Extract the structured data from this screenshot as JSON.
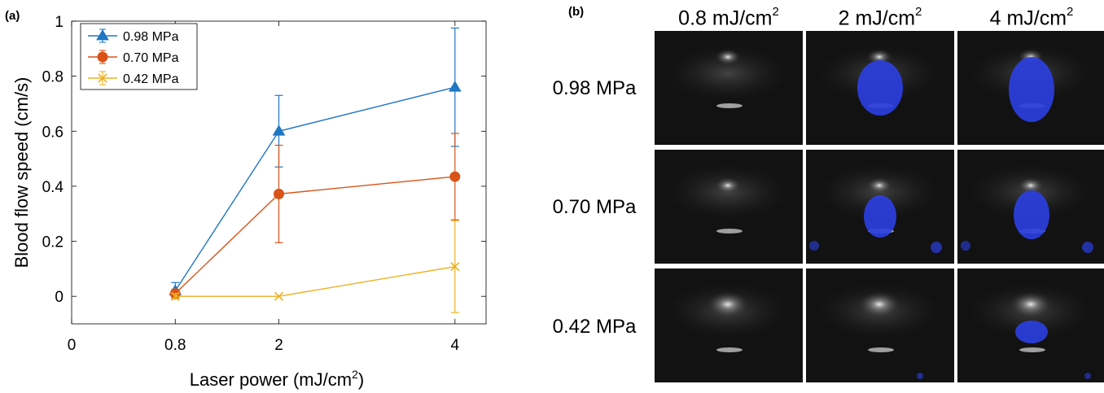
{
  "panel_a_label": "(a)",
  "panel_b_label": "(b)",
  "chart_data": {
    "type": "line",
    "xlabel": "Laser power (mJ/cm",
    "xlabel_sup": "2",
    "xlabel_suffix": ")",
    "ylabel": "Blood flow speed (cm/s)",
    "x": [
      0.8,
      2,
      4
    ],
    "x_positions": [
      1,
      2,
      3.7
    ],
    "x_ticks": [
      "0",
      "0.8",
      "2",
      "4"
    ],
    "y_ticks": [
      "0",
      "0.2",
      "0.4",
      "0.6",
      "0.8",
      "1"
    ],
    "y_tick_values": [
      0,
      0.2,
      0.4,
      0.6,
      0.8,
      1
    ],
    "ylim": [
      -0.1,
      1
    ],
    "grid": false,
    "legend_position": "top-left",
    "series": [
      {
        "name": "0.98 MPa",
        "values": [
          0.02,
          0.6,
          0.76
        ],
        "errors": [
          0.03,
          0.13,
          0.215
        ],
        "marker": "triangle",
        "color": "#1f77c4"
      },
      {
        "name": "0.70 MPa",
        "values": [
          0.01,
          0.372,
          0.435
        ],
        "errors": [
          0.015,
          0.177,
          0.157
        ],
        "marker": "circle",
        "color": "#d95319"
      },
      {
        "name": "0.42 MPa",
        "values": [
          0.0,
          0.0,
          0.108
        ],
        "errors": [
          0.01,
          0.0,
          0.167
        ],
        "marker": "x",
        "color": "#edb120"
      }
    ]
  },
  "grid_b": {
    "columns": [
      {
        "label": "0.8 mJ/cm",
        "sup": "2"
      },
      {
        "label": "2 mJ/cm",
        "sup": "2"
      },
      {
        "label": "4 mJ/cm",
        "sup": "2"
      }
    ],
    "rows": [
      "0.98 MPa",
      "0.70 MPa",
      "0.42 MPa"
    ],
    "blob_color": "#2b3fe0"
  }
}
